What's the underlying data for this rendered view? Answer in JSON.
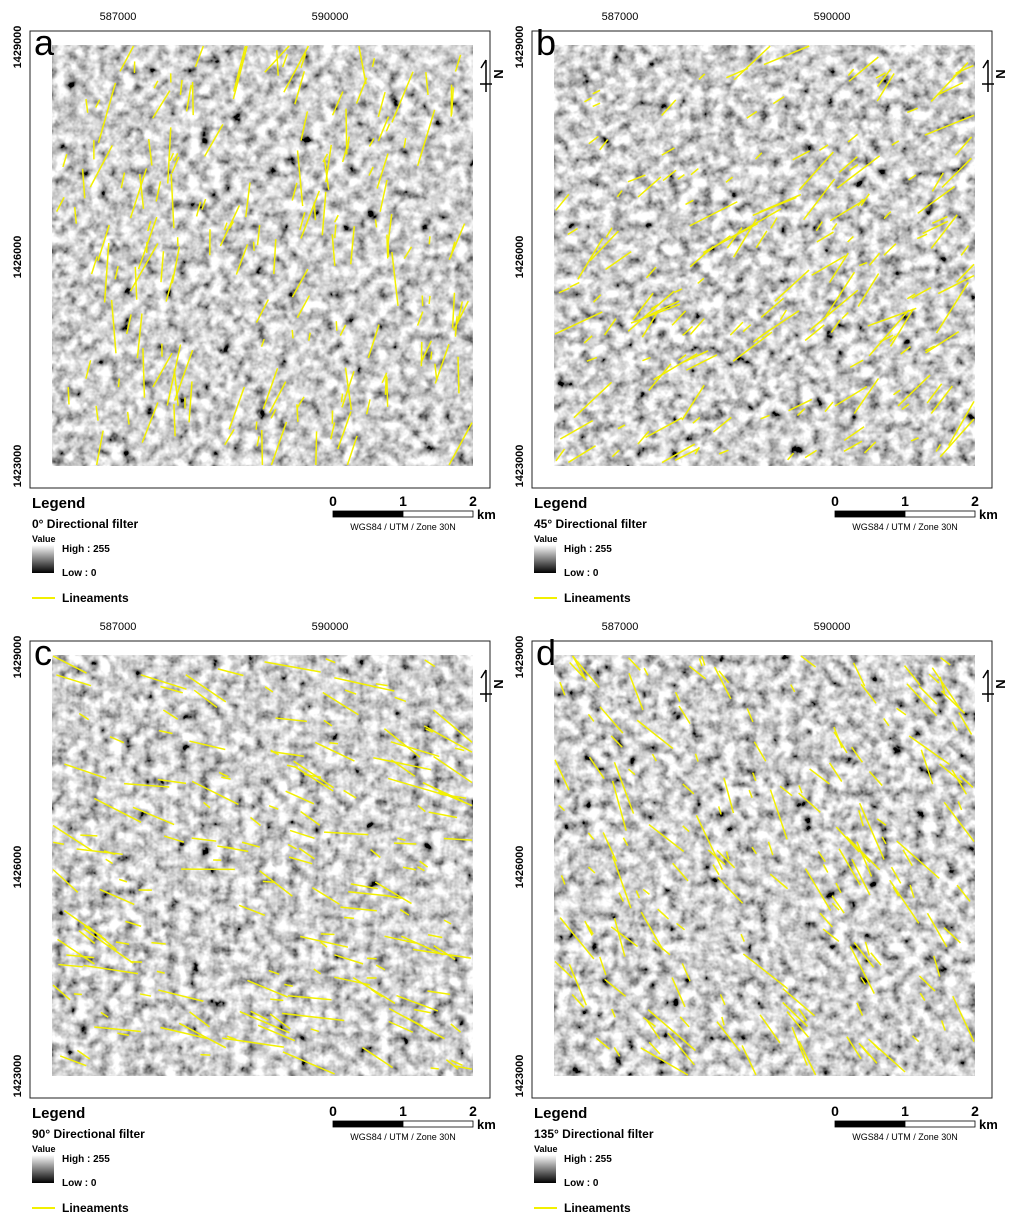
{
  "panels": [
    {
      "letter": "a",
      "x_labels": [
        587000,
        590000
      ],
      "y_labels": [
        1429000,
        1426000,
        1423000
      ],
      "north": "N",
      "legend": {
        "title": "Legend",
        "filter": "0° Directional filter",
        "value": "Value",
        "high": "High : 255",
        "low": "Low : 0",
        "lineaments": "Lineaments"
      },
      "scale": {
        "labels": [
          0,
          1,
          2
        ],
        "unit": "km",
        "crs": "WGS84 / UTM / Zone 30N"
      }
    },
    {
      "letter": "b",
      "x_labels": [
        587000,
        590000
      ],
      "y_labels": [
        1429000,
        1426000,
        1423000
      ],
      "north": "N",
      "legend": {
        "title": "Legend",
        "filter": "45° Directional filter",
        "value": "Value",
        "high": "High : 255",
        "low": "Low : 0",
        "lineaments": "Lineaments"
      },
      "scale": {
        "labels": [
          0,
          1,
          2
        ],
        "unit": "km",
        "crs": "WGS84 / UTM / Zone 30N"
      }
    },
    {
      "letter": "c",
      "x_labels": [
        587000,
        590000
      ],
      "y_labels": [
        1429000,
        1426000,
        1423000
      ],
      "north": "N",
      "legend": {
        "title": "Legend",
        "filter": "90° Directional filter",
        "value": "Value",
        "high": "High : 255",
        "low": "Low : 0",
        "lineaments": "Lineaments"
      },
      "scale": {
        "labels": [
          0,
          1,
          2
        ],
        "unit": "km",
        "crs": "WGS84 / UTM / Zone 30N"
      }
    },
    {
      "letter": "d",
      "x_labels": [
        587000,
        590000
      ],
      "y_labels": [
        1429000,
        1426000,
        1423000
      ],
      "north": "N",
      "legend": {
        "title": "Legend",
        "filter": "135° Directional filter",
        "value": "Value",
        "high": "High : 255",
        "low": "Low : 0",
        "lineaments": "Lineaments"
      },
      "scale": {
        "labels": [
          0,
          1,
          2
        ],
        "unit": "km",
        "crs": "WGS84 / UTM / Zone 30N"
      }
    }
  ]
}
